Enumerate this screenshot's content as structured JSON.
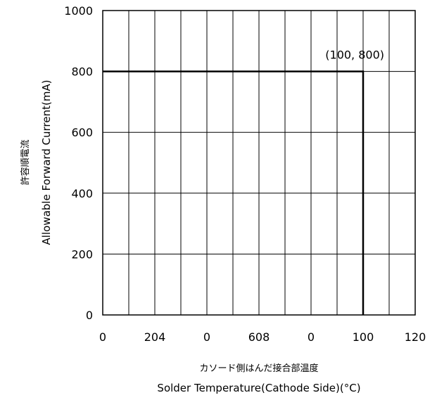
{
  "chart_data": {
    "type": "line",
    "title": "",
    "xlabel_jp": "カソード側はんだ接合部温度",
    "xlabel": "Solder Temperature(Cathode Side)(°C)",
    "ylabel_jp": "許容順電流",
    "ylabel": "Allowable Forward Current(mA)",
    "xlim": [
      0,
      120
    ],
    "ylim": [
      0,
      1000
    ],
    "x_tick_labels": [
      "0",
      "204",
      "0",
      "608",
      "0",
      "100",
      "120"
    ],
    "y_tick_labels": [
      "0",
      "200",
      "400",
      "600",
      "800",
      "1000"
    ],
    "grid": true,
    "series": [
      {
        "x": [
          0,
          100,
          100
        ],
        "y": [
          800,
          800,
          0
        ]
      }
    ],
    "annotations": [
      {
        "text": "(100, 800)",
        "x": 100,
        "y": 800
      }
    ]
  }
}
